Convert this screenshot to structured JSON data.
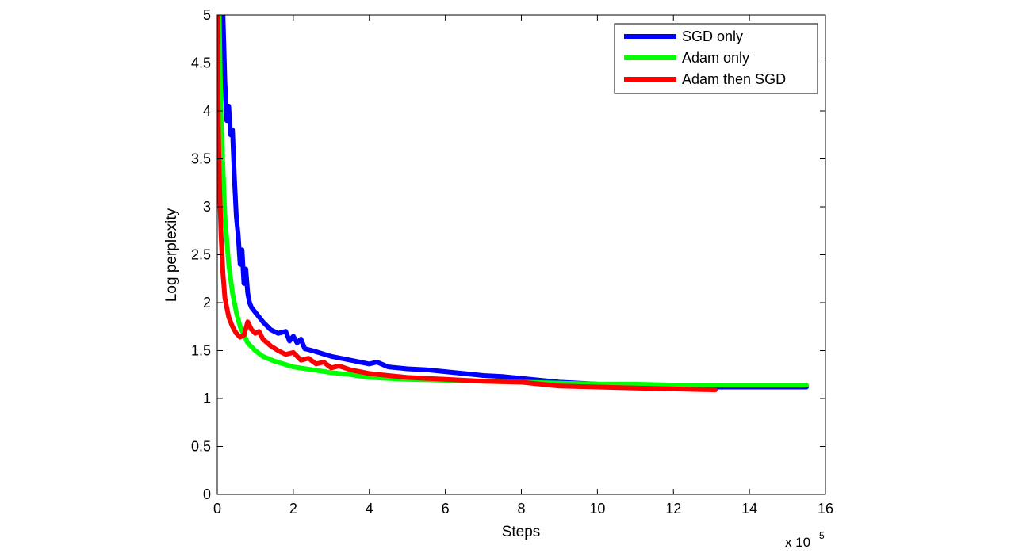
{
  "chart_data": {
    "type": "line",
    "title": "",
    "xlabel": "Steps",
    "ylabel": "Log perplexity",
    "x_multiplier_label": "x 10",
    "x_multiplier_exponent": "5",
    "xlim": [
      0,
      16
    ],
    "ylim": [
      0,
      5
    ],
    "xticks": [
      "0",
      "2",
      "4",
      "6",
      "8",
      "10",
      "12",
      "14",
      "16"
    ],
    "yticks": [
      "0",
      "0.5",
      "1",
      "1.5",
      "2",
      "2.5",
      "3",
      "3.5",
      "4",
      "4.5",
      "5"
    ],
    "grid": false,
    "legend_position": "top-right",
    "series": [
      {
        "name": "SGD only",
        "color": "#0000ff",
        "x": [
          0.15,
          0.2,
          0.25,
          0.3,
          0.35,
          0.4,
          0.45,
          0.5,
          0.55,
          0.6,
          0.65,
          0.7,
          0.75,
          0.8,
          0.85,
          0.9,
          1.0,
          1.1,
          1.2,
          1.4,
          1.6,
          1.8,
          1.9,
          2.0,
          2.1,
          2.2,
          2.3,
          2.5,
          3.0,
          3.5,
          4.0,
          4.2,
          4.5,
          5.0,
          5.5,
          6.0,
          6.5,
          7.0,
          7.5,
          8.0,
          9.0,
          10.0,
          11.0,
          12.0,
          13.0,
          14.0,
          15.5
        ],
        "y": [
          5.0,
          4.3,
          3.9,
          4.05,
          3.75,
          3.8,
          3.3,
          2.9,
          2.7,
          2.4,
          2.55,
          2.2,
          2.35,
          2.1,
          2.0,
          1.95,
          1.9,
          1.85,
          1.8,
          1.72,
          1.68,
          1.7,
          1.6,
          1.65,
          1.58,
          1.62,
          1.52,
          1.5,
          1.44,
          1.4,
          1.36,
          1.38,
          1.33,
          1.31,
          1.3,
          1.28,
          1.26,
          1.24,
          1.23,
          1.21,
          1.17,
          1.15,
          1.14,
          1.13,
          1.12,
          1.12,
          1.12
        ]
      },
      {
        "name": "Adam only",
        "color": "#00ff00",
        "x": [
          0.05,
          0.1,
          0.15,
          0.2,
          0.3,
          0.4,
          0.5,
          0.6,
          0.8,
          1.0,
          1.2,
          1.5,
          2.0,
          2.5,
          3.0,
          3.5,
          4.0,
          5.0,
          6.0,
          7.0,
          8.0,
          9.0,
          10.0,
          11.0,
          12.0,
          13.0,
          14.0,
          15.5
        ],
        "y": [
          5.0,
          3.9,
          3.4,
          2.9,
          2.4,
          2.1,
          1.9,
          1.75,
          1.58,
          1.5,
          1.44,
          1.39,
          1.33,
          1.3,
          1.27,
          1.25,
          1.22,
          1.2,
          1.19,
          1.18,
          1.17,
          1.16,
          1.15,
          1.15,
          1.14,
          1.14,
          1.14,
          1.14
        ]
      },
      {
        "name": "Adam then SGD",
        "color": "#ff0000",
        "x": [
          0.0,
          0.03,
          0.06,
          0.1,
          0.15,
          0.2,
          0.3,
          0.4,
          0.5,
          0.6,
          0.7,
          0.8,
          0.9,
          1.0,
          1.1,
          1.2,
          1.4,
          1.6,
          1.8,
          2.0,
          2.2,
          2.4,
          2.6,
          2.8,
          3.0,
          3.2,
          3.5,
          4.0,
          4.5,
          5.0,
          5.5,
          6.0,
          6.5,
          7.0,
          8.0,
          9.0,
          10.0,
          11.0,
          12.0,
          13.1
        ],
        "y": [
          5.0,
          3.8,
          3.2,
          2.7,
          2.3,
          2.05,
          1.85,
          1.75,
          1.68,
          1.64,
          1.66,
          1.8,
          1.72,
          1.68,
          1.7,
          1.62,
          1.55,
          1.5,
          1.46,
          1.48,
          1.4,
          1.42,
          1.36,
          1.38,
          1.32,
          1.34,
          1.3,
          1.26,
          1.24,
          1.22,
          1.21,
          1.2,
          1.19,
          1.18,
          1.17,
          1.13,
          1.12,
          1.11,
          1.1,
          1.09
        ]
      }
    ]
  }
}
